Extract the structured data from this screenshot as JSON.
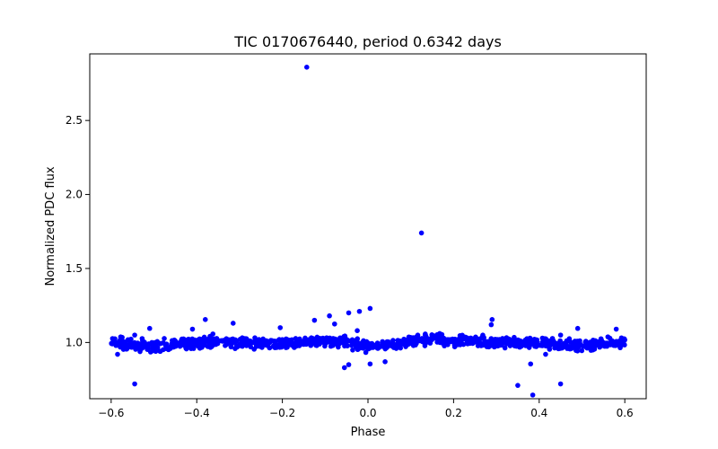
{
  "chart_data": {
    "type": "scatter",
    "title": "TIC 0170676440, period 0.6342 days",
    "xlabel": "Phase",
    "ylabel": "Normalized PDC flux",
    "xlim": [
      -0.65,
      0.65
    ],
    "ylim": [
      0.62,
      2.95
    ],
    "xticks": [
      -0.6,
      -0.4,
      -0.2,
      0.0,
      0.2,
      0.4,
      0.6
    ],
    "xtick_labels": [
      "−0.6",
      "−0.4",
      "−0.2",
      "0.0",
      "0.2",
      "0.4",
      "0.6"
    ],
    "yticks": [
      1.0,
      1.5,
      2.0,
      2.5
    ],
    "ytick_labels": [
      "1.0",
      "1.5",
      "2.0",
      "2.5"
    ],
    "grid": false,
    "legend": "none",
    "marker_color": "#0000ff",
    "baseline": {
      "x": [
        -0.6,
        -0.55,
        -0.5,
        -0.45,
        -0.4,
        -0.35,
        -0.3,
        -0.25,
        -0.2,
        -0.15,
        -0.1,
        -0.05,
        0.0,
        0.05,
        0.1,
        0.15,
        0.2,
        0.25,
        0.3,
        0.35,
        0.4,
        0.45,
        0.5,
        0.55,
        0.6
      ],
      "y": [
        1.01,
        0.985,
        0.98,
        0.99,
        1.0,
        1.01,
        1.0,
        0.99,
        0.99,
        1.0,
        1.01,
        1.0,
        0.97,
        0.985,
        1.01,
        1.02,
        1.01,
        1.005,
        1.0,
        1.0,
        1.0,
        0.985,
        0.98,
        0.99,
        1.0
      ],
      "scatter": 0.018,
      "count": 1100
    },
    "outliers": [
      {
        "x": -0.143,
        "y": 2.86
      },
      {
        "x": 0.125,
        "y": 1.74
      },
      {
        "x": 0.005,
        "y": 1.23
      },
      {
        "x": -0.02,
        "y": 1.21
      },
      {
        "x": -0.045,
        "y": 1.2
      },
      {
        "x": -0.09,
        "y": 1.18
      },
      {
        "x": -0.38,
        "y": 1.155
      },
      {
        "x": 0.29,
        "y": 1.155
      },
      {
        "x": -0.125,
        "y": 1.15
      },
      {
        "x": -0.315,
        "y": 1.13
      },
      {
        "x": -0.078,
        "y": 1.125
      },
      {
        "x": 0.288,
        "y": 1.12
      },
      {
        "x": -0.51,
        "y": 1.095
      },
      {
        "x": -0.205,
        "y": 1.1
      },
      {
        "x": 0.49,
        "y": 1.095
      },
      {
        "x": -0.41,
        "y": 1.09
      },
      {
        "x": -0.025,
        "y": 1.08
      },
      {
        "x": 0.58,
        "y": 1.09
      },
      {
        "x": -0.545,
        "y": 1.05
      },
      {
        "x": 0.45,
        "y": 1.05
      },
      {
        "x": -0.055,
        "y": 0.83
      },
      {
        "x": -0.045,
        "y": 0.85
      },
      {
        "x": 0.005,
        "y": 0.855
      },
      {
        "x": 0.04,
        "y": 0.87
      },
      {
        "x": -0.585,
        "y": 0.92
      },
      {
        "x": 0.415,
        "y": 0.92
      },
      {
        "x": -0.545,
        "y": 0.72
      },
      {
        "x": 0.35,
        "y": 0.71
      },
      {
        "x": 0.45,
        "y": 0.72
      },
      {
        "x": 0.38,
        "y": 0.855
      },
      {
        "x": 0.385,
        "y": 0.645
      }
    ]
  }
}
